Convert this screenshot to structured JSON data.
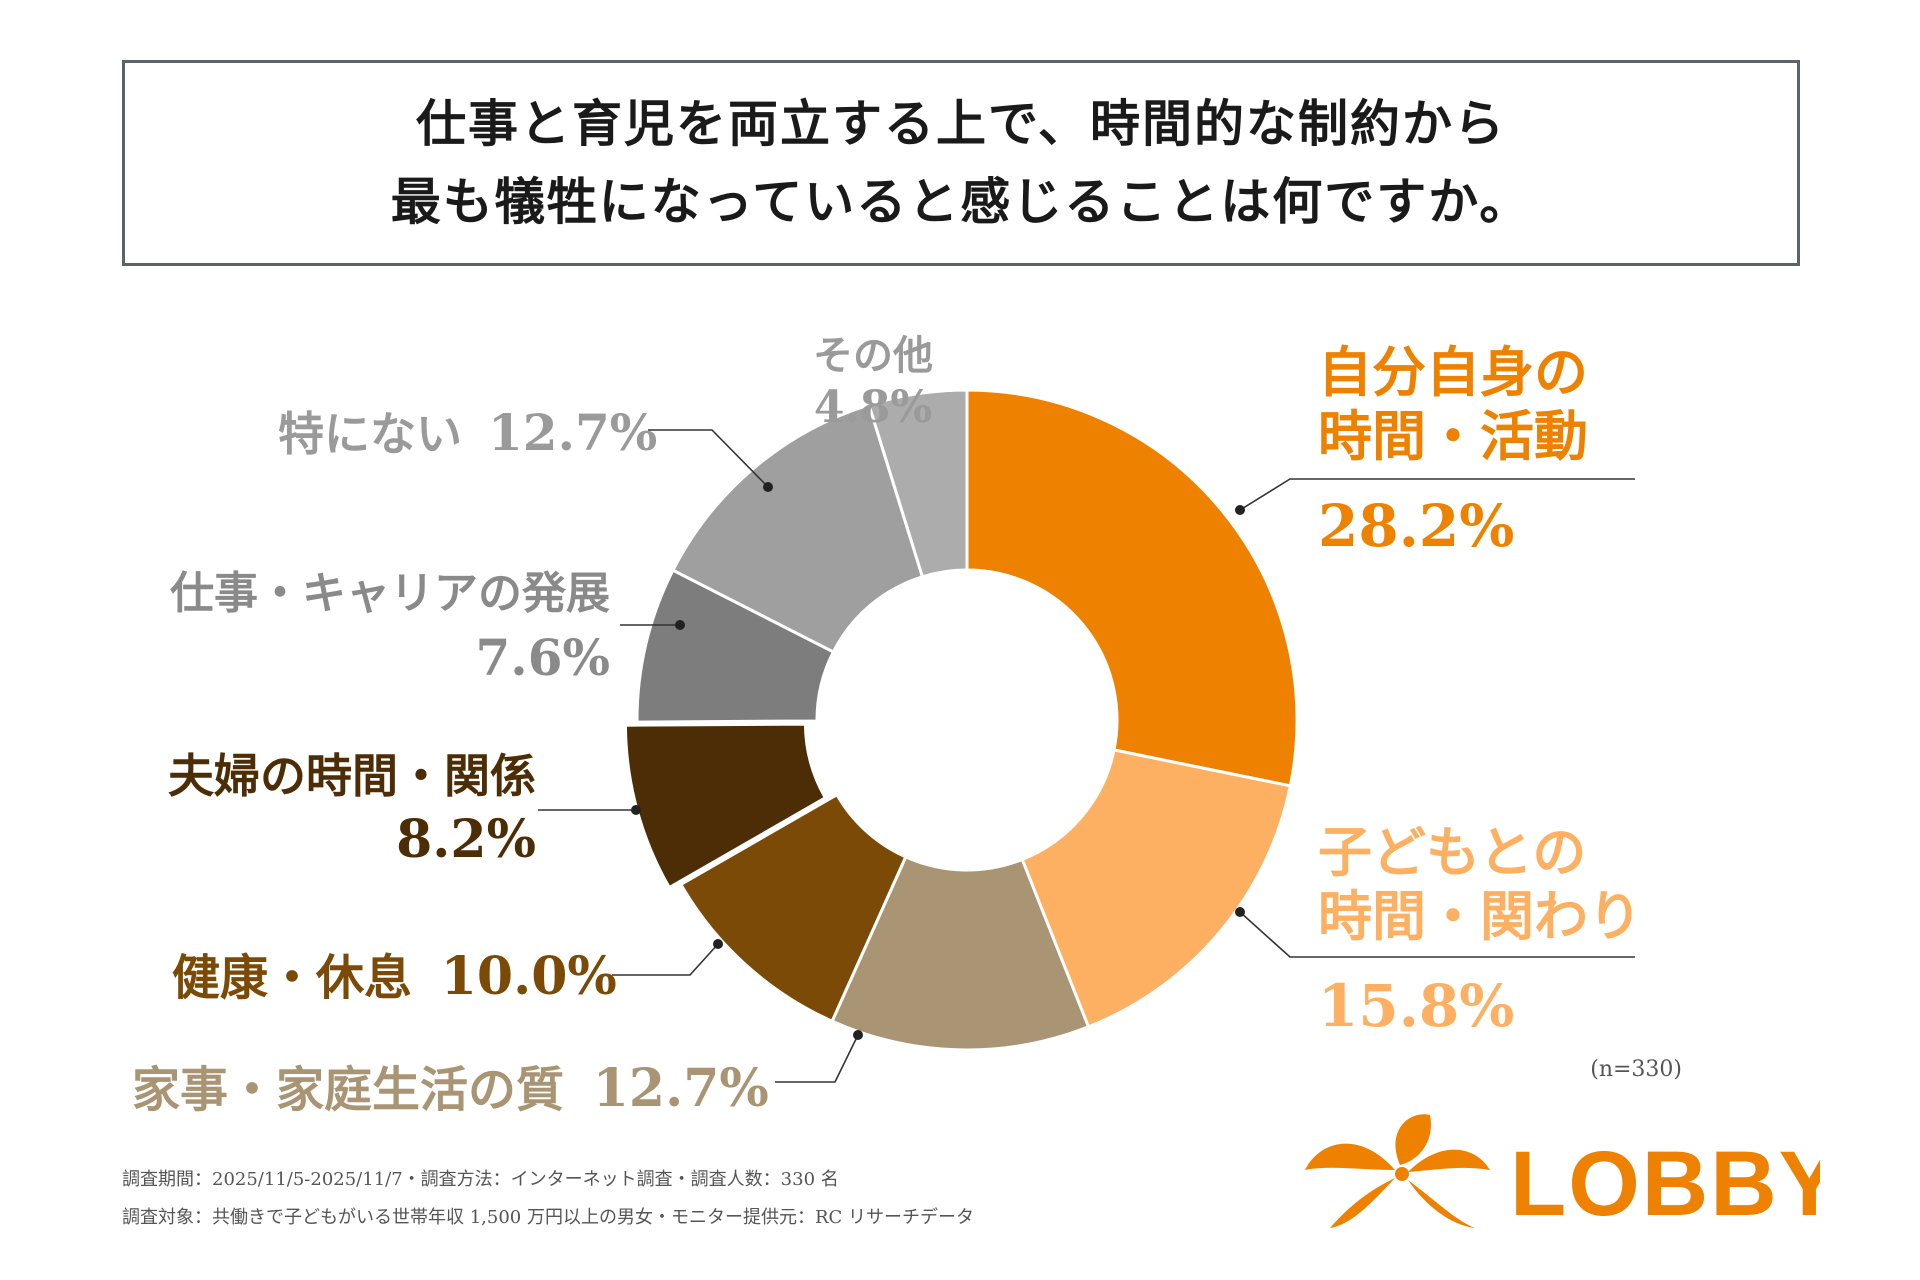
{
  "title": {
    "line1": "仕事と育児を両立する上で、時間的な制約から",
    "line2": "最も犠牲になっていると感じることは何ですか。"
  },
  "chart_data": {
    "type": "pie",
    "donut": true,
    "sample_size": "(n=330)",
    "slices": [
      {
        "label_lines": [
          "自分自身の",
          "時間・活動"
        ],
        "value": 28.2,
        "value_label": "28.2%",
        "color": "#ee8200"
      },
      {
        "label_lines": [
          "子どもとの",
          "時間・関わり"
        ],
        "value": 15.8,
        "value_label": "15.8%",
        "color": "#fdb062"
      },
      {
        "label_lines": [
          "家事・家庭生活の質"
        ],
        "value": 12.7,
        "value_label": "12.7%",
        "color": "#a99474"
      },
      {
        "label_lines": [
          "健康・休息"
        ],
        "value": 10.0,
        "value_label": "10.0%",
        "color": "#7a4a06"
      },
      {
        "label_lines": [
          "夫婦の時間・関係"
        ],
        "value": 8.2,
        "value_label": "8.2%",
        "color": "#4c2d06"
      },
      {
        "label_lines": [
          "仕事・キャリアの発展"
        ],
        "value": 7.6,
        "value_label": "7.6%",
        "color": "#7d7d7d"
      },
      {
        "label_lines": [
          "特にない"
        ],
        "value": 12.7,
        "value_label": "12.7%",
        "color": "#9f9f9f"
      },
      {
        "label_lines": [
          "その他"
        ],
        "value": 4.8,
        "value_label": "4.8%",
        "color": "#acacac"
      }
    ]
  },
  "labels": {
    "self": {
      "l1": "自分自身の",
      "l2": "時間・活動",
      "pct": "28.2%",
      "color": "#ee8200"
    },
    "child": {
      "l1": "子どもとの",
      "l2": "時間・関わり",
      "pct": "15.8%",
      "color": "#fdb062"
    },
    "home": {
      "text": "家事・家庭生活の質",
      "pct": "12.7%",
      "color": "#a99474"
    },
    "health": {
      "text": "健康・休息",
      "pct": "10.0%",
      "color": "#7a4a06"
    },
    "couple": {
      "text": "夫婦の時間・関係",
      "pct": "8.2%",
      "color": "#4c2d06"
    },
    "career": {
      "text": "仕事・キャリアの発展",
      "pct": "7.6%",
      "color": "#8a8a8a"
    },
    "none": {
      "text": "特にない",
      "pct": "12.7%",
      "color": "#9a9a9a"
    },
    "other": {
      "text": "その他",
      "pct": "4.8%",
      "color": "#9a9a9a"
    }
  },
  "footer": {
    "line1": "調査期間：2025/11/5-2025/11/7・調査方法：インターネット調査・調査人数：330 名",
    "line2": "調査対象：共働きで子どもがいる世帯年収 1,500 万円以上の男女・モニター提供元：RC リサーチデータ"
  },
  "logo": {
    "text": "LOBBY",
    "color": "#ee8200"
  }
}
